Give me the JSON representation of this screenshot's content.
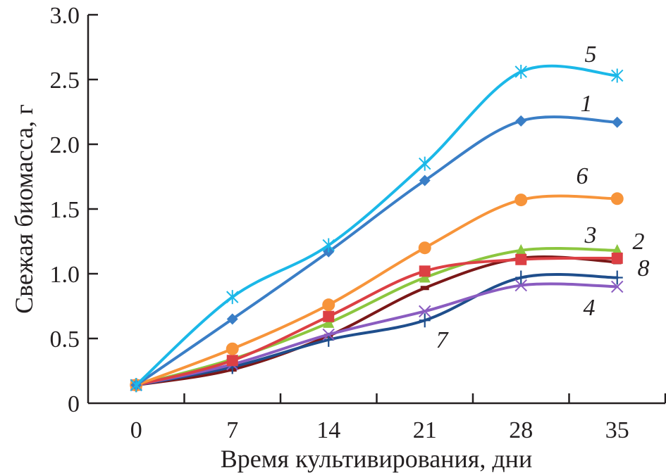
{
  "chart_data": {
    "type": "line",
    "title": "",
    "xlabel": "Время культивирования, дни",
    "ylabel": "Свежая биомасса, г",
    "categories": [
      "0",
      "7",
      "14",
      "21",
      "28",
      "35"
    ],
    "ylim": [
      0,
      3.0
    ],
    "yticks": [
      "0",
      "0.5",
      "1.0",
      "1.5",
      "2.0",
      "2.5",
      "3.0"
    ],
    "ytick_values": [
      0,
      0.5,
      1.0,
      1.5,
      2.0,
      2.5,
      3.0
    ],
    "grid": false,
    "legend": "inline labels near line ends",
    "smooth": true,
    "series": [
      {
        "name": "1",
        "color": "#3a7ec6",
        "marker": "diamond",
        "values": [
          0.14,
          0.65,
          1.17,
          1.72,
          2.18,
          2.17
        ]
      },
      {
        "name": "2",
        "color": "#dc4044",
        "marker": "square",
        "values": [
          0.14,
          0.33,
          0.67,
          1.02,
          1.11,
          1.12
        ]
      },
      {
        "name": "3",
        "color": "#8cc63f",
        "marker": "triangle",
        "values": [
          0.14,
          0.34,
          0.62,
          0.97,
          1.18,
          1.18
        ]
      },
      {
        "name": "4",
        "color": "#8a5cc0",
        "marker": "x",
        "values": [
          0.14,
          0.3,
          0.53,
          0.71,
          0.91,
          0.9
        ]
      },
      {
        "name": "5",
        "color": "#1bb8e8",
        "marker": "asterisk",
        "values": [
          0.14,
          0.82,
          1.22,
          1.85,
          2.56,
          2.53
        ]
      },
      {
        "name": "6",
        "color": "#f7943a",
        "marker": "circle",
        "values": [
          0.14,
          0.42,
          0.76,
          1.2,
          1.57,
          1.58
        ]
      },
      {
        "name": "7",
        "color": "#1f4e8c",
        "marker": "plus",
        "values": [
          0.14,
          0.28,
          0.49,
          0.64,
          0.97,
          0.97
        ]
      },
      {
        "name": "8",
        "color": "#7b1818",
        "marker": "dash",
        "values": [
          0.14,
          0.26,
          0.52,
          0.89,
          1.12,
          1.09
        ]
      }
    ],
    "annotations": [
      {
        "text": "5",
        "series": "5",
        "near_x": "35"
      },
      {
        "text": "1",
        "series": "1",
        "near_x": "35"
      },
      {
        "text": "6",
        "series": "6",
        "near_x": "35"
      },
      {
        "text": "3",
        "series": "3",
        "near_x": "35"
      },
      {
        "text": "2",
        "series": "2",
        "near_x": "35"
      },
      {
        "text": "8",
        "series": "8",
        "near_x": "35"
      },
      {
        "text": "4",
        "series": "4",
        "near_x": "35"
      },
      {
        "text": "7",
        "series": "7",
        "near_x": "21"
      }
    ]
  }
}
